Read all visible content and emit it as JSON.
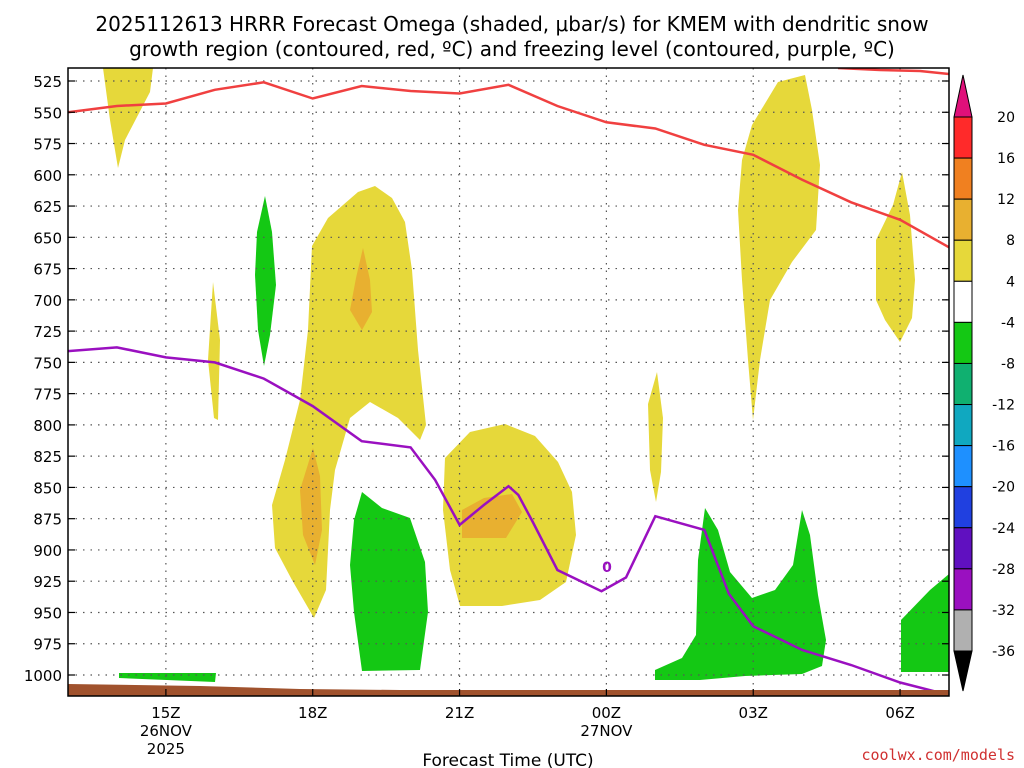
{
  "chart_data": {
    "type": "contour",
    "title_lines": [
      "2025112613 HRRR Forecast Omega (shaded, μbar/s) for KMEM with dendritic snow",
      "growth region (contoured, red, ºC) and freezing level (contoured, purple, ºC)"
    ],
    "xlabel": "Forecast Time (UTC)",
    "credit": "coolwx.com/models",
    "x_range_hours": [
      13,
      31
    ],
    "x_ticks": [
      {
        "hour": 15,
        "lines": [
          "15Z",
          "26NOV",
          "2025"
        ]
      },
      {
        "hour": 18,
        "lines": [
          "18Z"
        ]
      },
      {
        "hour": 21,
        "lines": [
          "21Z"
        ]
      },
      {
        "hour": 24,
        "lines": [
          "00Z",
          "27NOV"
        ]
      },
      {
        "hour": 27,
        "lines": [
          "03Z"
        ]
      },
      {
        "hour": 30,
        "lines": [
          "06Z"
        ]
      }
    ],
    "y_ticks_hpa": [
      "525",
      "550",
      "575",
      "600",
      "625",
      "650",
      "675",
      "700",
      "725",
      "750",
      "775",
      "800",
      "825",
      "850",
      "875",
      "900",
      "925",
      "950",
      "975",
      "1000"
    ],
    "colorbar_labels": [
      "20",
      "16",
      "12",
      "8",
      "4",
      "-4",
      "-8",
      "-12",
      "-16",
      "-20",
      "-24",
      "-28",
      "-32",
      "-36"
    ],
    "colorbar_colors": [
      "#e0107a",
      "#ff2a2a",
      "#f08020",
      "#e8b030",
      "#e6d83a",
      "#ffffff",
      "#14c814",
      "#10b070",
      "#10a8c0",
      "#1e90ff",
      "#2040e0",
      "#6010c0",
      "#9a10c0",
      "#b0b0b0",
      "#000000"
    ],
    "freezing_level_label": "0",
    "series": [
      {
        "name": "freezing level 0ºC",
        "color": "#9a10c0",
        "hours": [
          13.0,
          14.0,
          15.0,
          16.0,
          17.0,
          18.0,
          19.0,
          20.0,
          20.5,
          21.0,
          21.5,
          22.0,
          22.2,
          22.5,
          23.0,
          23.9,
          24.4,
          25.0,
          26.0,
          26.5,
          27.0,
          28.0,
          29.0,
          30.0,
          31.0
        ],
        "pressure_hpa": [
          741,
          738,
          746,
          750,
          763,
          785,
          813,
          818,
          844,
          880,
          864,
          849,
          856,
          878,
          916,
          933,
          922,
          873,
          884,
          935,
          961,
          980,
          992,
          1006,
          1016
        ]
      },
      {
        "name": "dendritic snow growth -15ºC",
        "color": "#f04040",
        "hours": [
          13.0,
          14.0,
          15.0,
          16.0,
          17.0,
          18.0,
          19.0,
          20.0,
          21.0,
          22.0,
          23.0,
          24.0,
          25.0,
          26.0,
          27.0,
          28.0,
          29.0,
          30.0,
          31.0
        ],
        "pressure_hpa": [
          550,
          545,
          543,
          532,
          526,
          539,
          529,
          533,
          535,
          528,
          545,
          558,
          563,
          576,
          584,
          604,
          622,
          636,
          658
        ]
      }
    ],
    "shaded_regions": [
      {
        "value_range": "4 to 8",
        "color": "#e6d83a",
        "count": 11
      },
      {
        "value_range": "8 to 12",
        "color": "#e8b030",
        "count": 3
      },
      {
        "value_range": "-8 to -4",
        "color": "#14c814",
        "count": 7
      }
    ]
  }
}
